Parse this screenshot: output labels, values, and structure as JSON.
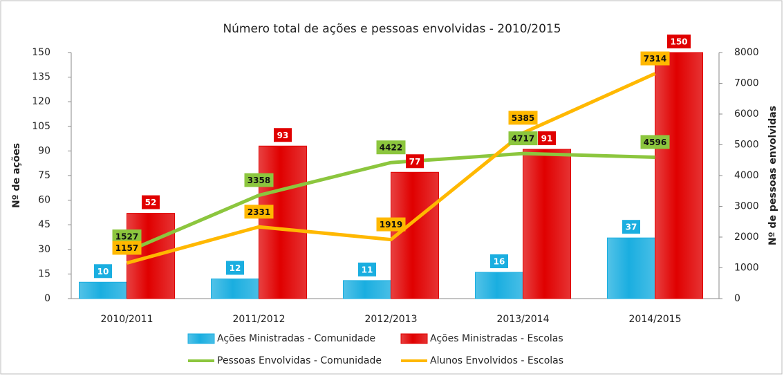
{
  "chart_data": {
    "type": "bar_line",
    "title": "Número total de ações e pessoas envolvidas - 2010/2015",
    "y_label": "Nº de ações",
    "y2_label": "Nº de pessoas envolvidas",
    "categories": [
      "2010/2011",
      "2011/2012",
      "2012/2013",
      "2013/2014",
      "2014/2015"
    ],
    "ylim": [
      0,
      150
    ],
    "yticks": [
      0,
      15,
      30,
      45,
      60,
      75,
      90,
      105,
      120,
      135,
      150
    ],
    "y2lim": [
      0,
      8000
    ],
    "y2ticks": [
      0,
      1000,
      2000,
      3000,
      4000,
      5000,
      6000,
      7000,
      8000
    ],
    "series": [
      {
        "name": "Ações Ministradas - Comunidade",
        "type": "bar",
        "color": "#1aaee0",
        "values": [
          10,
          12,
          11,
          16,
          37
        ]
      },
      {
        "name": "Ações Ministradas - Escolas",
        "type": "bar",
        "color": "#e00000",
        "values": [
          52,
          93,
          77,
          91,
          150
        ]
      },
      {
        "name": "Pessoas Envolvidas - Comunidade",
        "type": "line",
        "axis": "y2",
        "color": "#8cc63e",
        "values": [
          1527,
          3358,
          4422,
          4717,
          4596
        ]
      },
      {
        "name": "Alunos Envolvidos - Escolas",
        "type": "line",
        "axis": "y2",
        "color": "#ffb800",
        "values": [
          1157,
          2331,
          1919,
          5385,
          7314
        ]
      }
    ]
  }
}
